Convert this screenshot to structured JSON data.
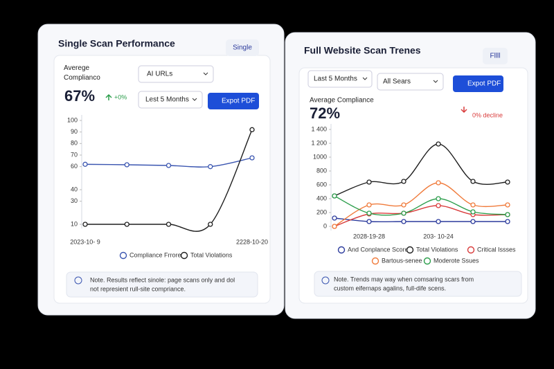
{
  "cards": [
    {
      "title": "Single Scan Performance",
      "button": "Single",
      "metric_label": "Averege Complianco",
      "filter": "AI URLs",
      "period": "Lest 5 Months",
      "export": "Expot PDF",
      "value": "67%",
      "change": "+0%",
      "note": [
        "Note. Results reflect sinole: page scans only and dol",
        "not represient rull-site compriance."
      ]
    },
    {
      "title": "Full Website Scan Trenes",
      "button": "Fllll",
      "metric_label": "Average Compliance",
      "filter": "All Sears",
      "period": "Last 5 Months",
      "export": "Expot PDF",
      "value": "72%",
      "change": "0% decline",
      "note": [
        "Note. Trends may way when comsaring scars from",
        "custom eifernaps agalins, full-dife scens."
      ]
    }
  ],
  "chart_data": [
    {
      "type": "line",
      "categories": [
        "2023-10- 9",
        null,
        null,
        null,
        "2228-10-20"
      ],
      "ylim": [
        10,
        100
      ],
      "yticks": [
        10,
        30,
        40,
        60,
        70,
        80,
        90,
        100
      ],
      "series": [
        {
          "name": "Compliance Frrore",
          "color": "#3a55b0",
          "values": [
            62,
            61.6,
            61,
            60,
            67.6
          ]
        },
        {
          "name": "Total Violations",
          "color": "#1e1e1e",
          "values": [
            10,
            10,
            10,
            10,
            92
          ]
        }
      ]
    },
    {
      "type": "line",
      "categories": [
        null,
        "2028-19-28",
        null,
        "203- 10-24",
        null,
        null
      ],
      "ylim": [
        0,
        1400
      ],
      "yticks": [
        0,
        200,
        400,
        600,
        800,
        1000,
        {
          "value": 1200,
          "label": "1 200"
        },
        {
          "value": 1400,
          "label": "1 400"
        }
      ],
      "series": [
        {
          "name": "And Conplance Score",
          "color": "#2b3a9c",
          "values": [
            120,
            70,
            70,
            70,
            70,
            70
          ]
        },
        {
          "name": "Total Violations",
          "color": "#1e1e1e",
          "values": [
            440,
            640,
            650,
            1190,
            650,
            640
          ]
        },
        {
          "name": "Critical Issses",
          "color": "#d93b3b",
          "values": [
            0,
            180,
            190,
            300,
            170,
            170
          ]
        },
        {
          "name": "Bartous-senee",
          "color": "#f07a3a",
          "values": [
            0,
            310,
            310,
            630,
            310,
            310
          ]
        },
        {
          "name": "Moderote Ssues",
          "color": "#2a9d4a",
          "values": [
            440,
            190,
            190,
            400,
            210,
            170
          ]
        }
      ]
    }
  ]
}
